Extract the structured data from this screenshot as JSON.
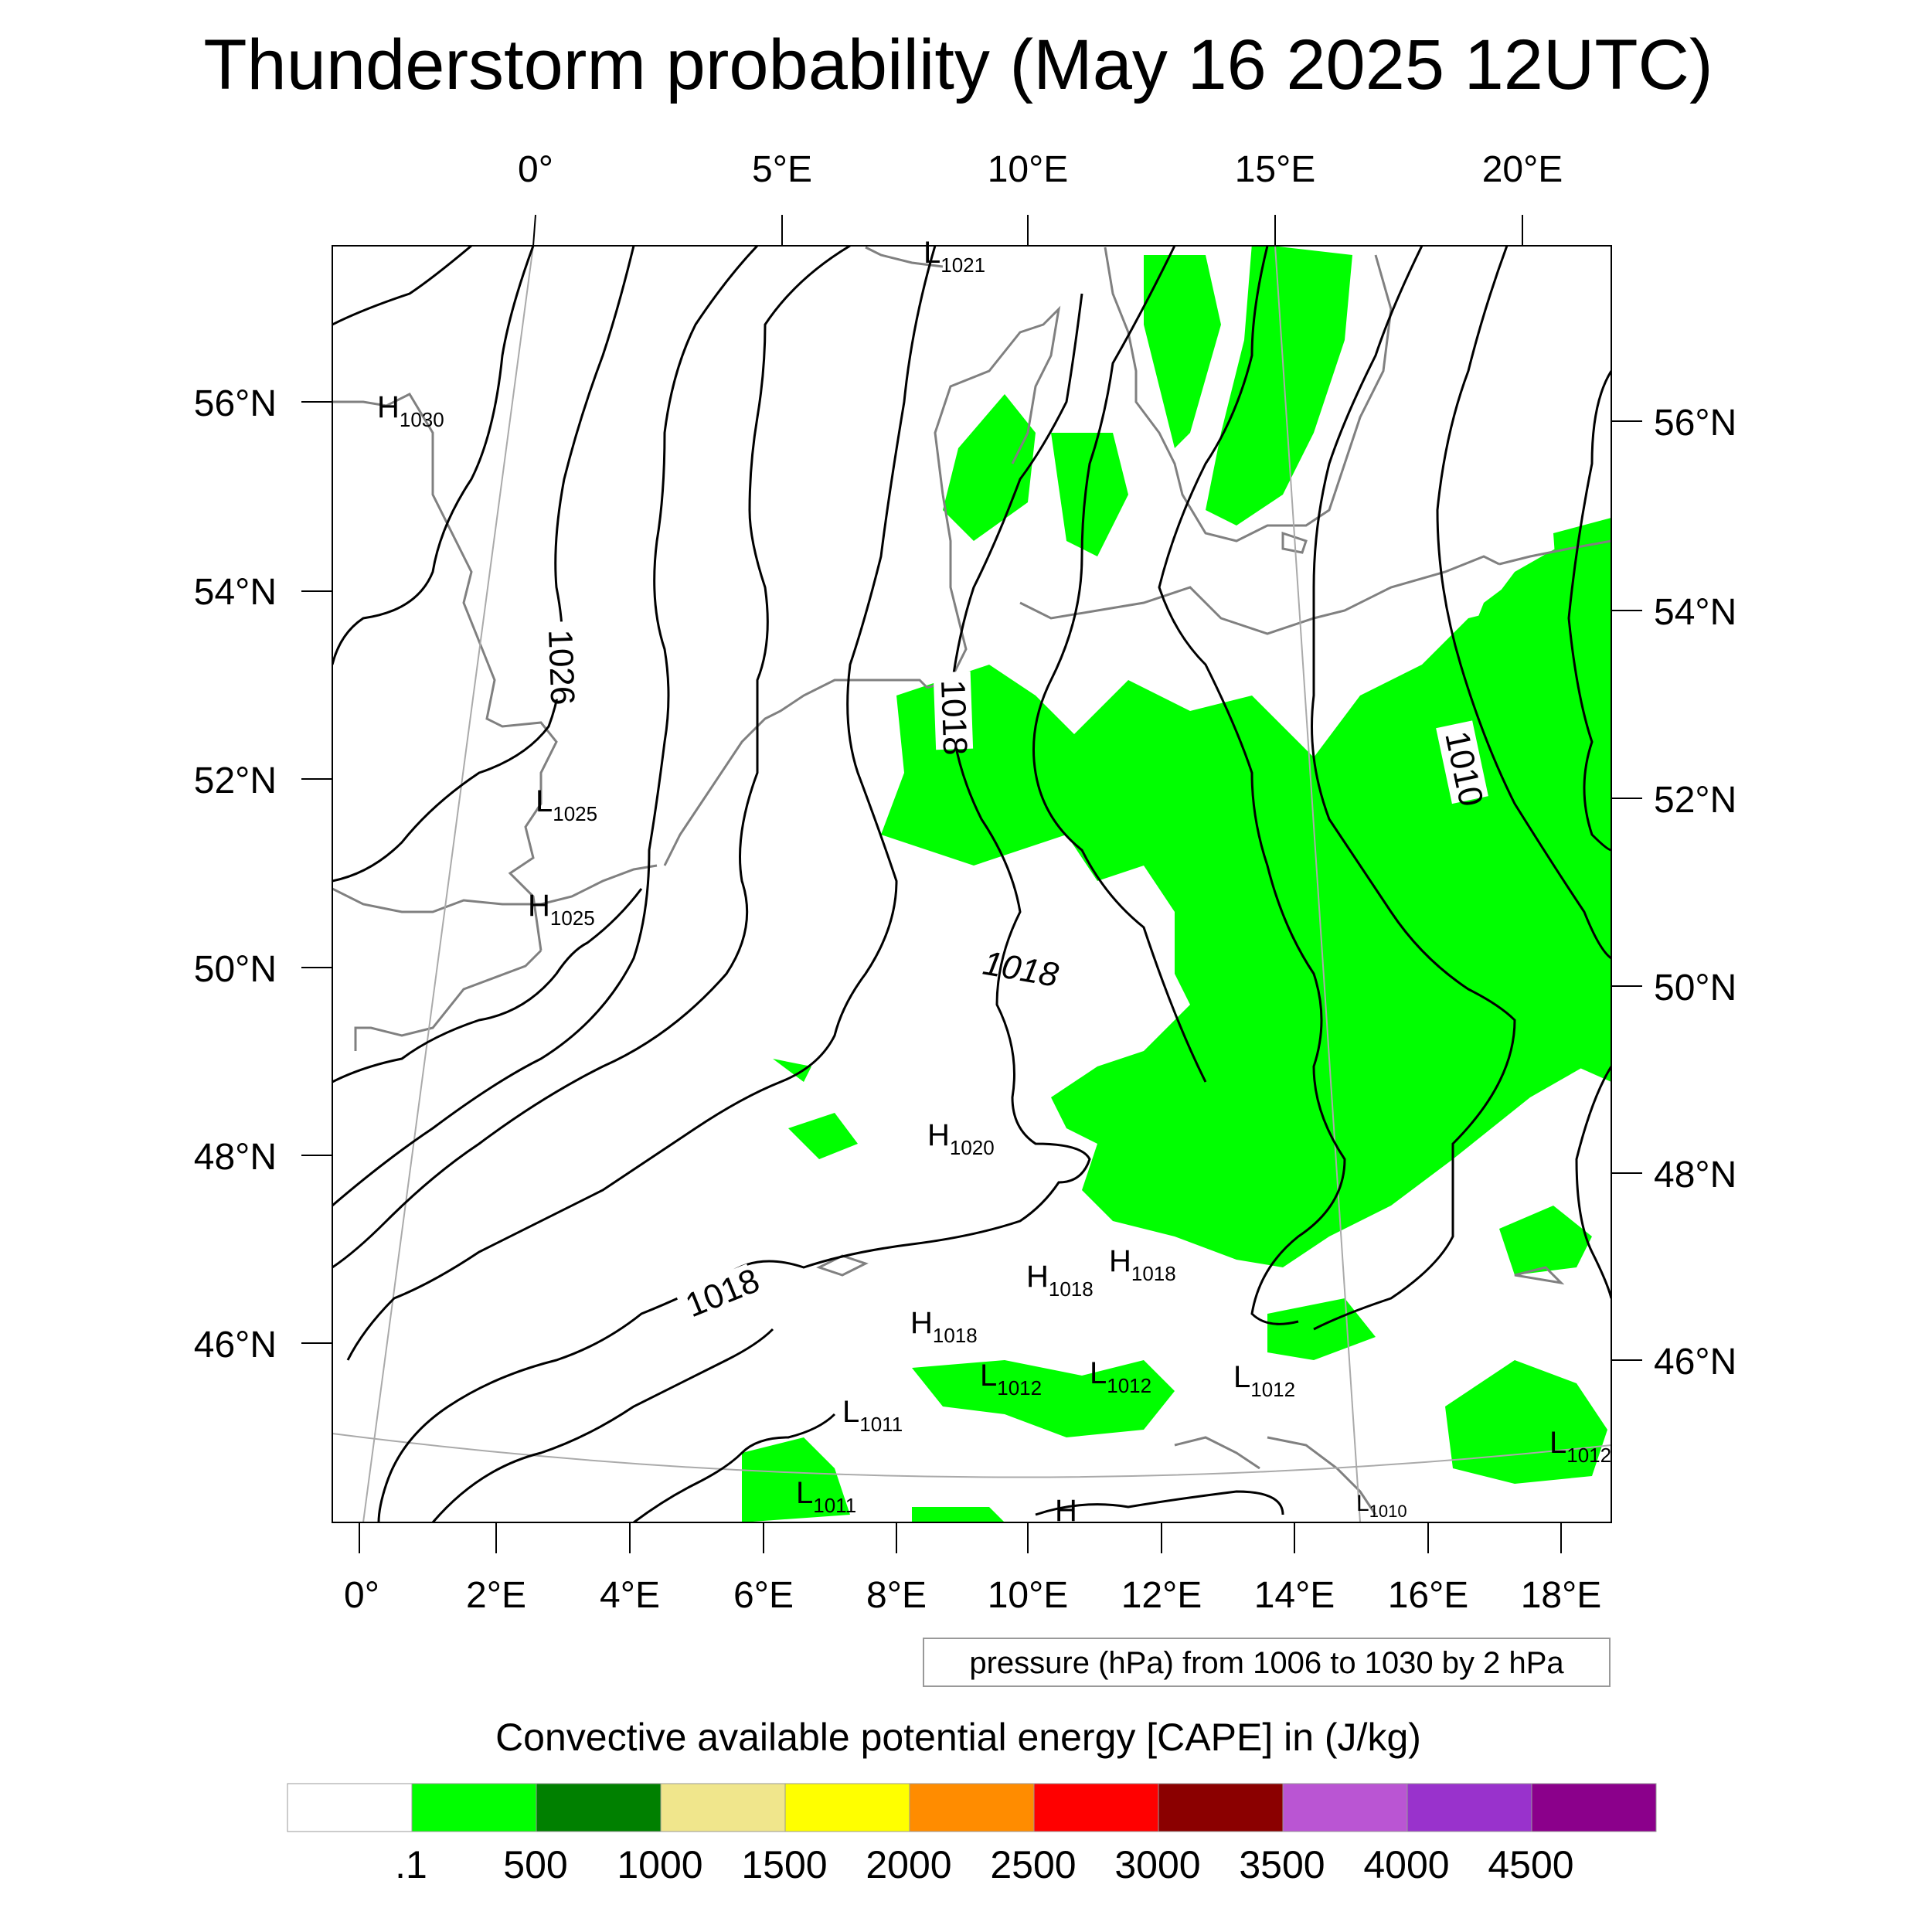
{
  "title": "Thunderstorm probability (May 16 2025 12UTC)",
  "top_lon_labels": [
    "0°",
    "5°E",
    "10°E",
    "15°E",
    "20°E"
  ],
  "bottom_lon_labels": [
    "0°",
    "2°E",
    "4°E",
    "6°E",
    "8°E",
    "10°E",
    "12°E",
    "14°E",
    "16°E",
    "18°E"
  ],
  "left_lat_labels": [
    "56°N",
    "54°N",
    "52°N",
    "50°N",
    "48°N",
    "46°N"
  ],
  "right_lat_labels": [
    "56°N",
    "54°N",
    "52°N",
    "50°N",
    "48°N",
    "46°N"
  ],
  "isobar_labels": [
    "1026",
    "1018",
    "1018",
    "1018",
    "1010"
  ],
  "pressure_centers": [
    {
      "type": "L",
      "value": "1021"
    },
    {
      "type": "H",
      "value": "1030"
    },
    {
      "type": "L",
      "value": "1025"
    },
    {
      "type": "H",
      "value": "1025"
    },
    {
      "type": "H",
      "value": "1020"
    },
    {
      "type": "H",
      "value": "1018"
    },
    {
      "type": "H",
      "value": "1018"
    },
    {
      "type": "H",
      "value": "1018"
    },
    {
      "type": "L",
      "value": "1012"
    },
    {
      "type": "L",
      "value": "1012"
    },
    {
      "type": "L",
      "value": "1012"
    },
    {
      "type": "L",
      "value": "1011"
    },
    {
      "type": "L",
      "value": "1011"
    },
    {
      "type": "L",
      "value": "1012"
    },
    {
      "type": "L",
      "value": "1010"
    },
    {
      "type": "H",
      "value": ""
    }
  ],
  "contour_info": "pressure (hPa) from 1006 to 1030 by 2 hPa",
  "colorbar": {
    "title": "Convective available potential energy [CAPE] in (J/kg)",
    "colors": [
      "#ffffff",
      "#00ff00",
      "#008000",
      "#f0e68c",
      "#ffff00",
      "#ff8c00",
      "#ff0000",
      "#8b0000",
      "#ba55d3",
      "#9932cc",
      "#8b008b"
    ],
    "labels": [
      ".1",
      "500",
      "1000",
      "1500",
      "2000",
      "2500",
      "3000",
      "3500",
      "4000",
      "4500"
    ]
  },
  "colors": {
    "cape_fill": "#00ff00",
    "coastline": "#808080",
    "isobar": "#000000"
  }
}
